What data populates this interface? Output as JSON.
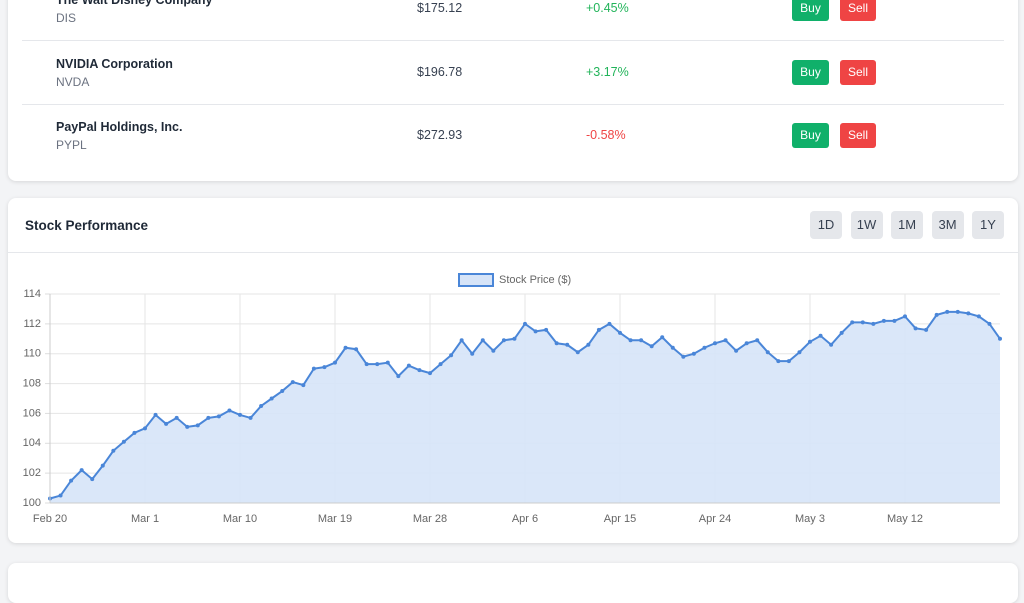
{
  "stocks": {
    "rows": [
      {
        "name": "The Walt Disney Company",
        "symbol": "DIS",
        "price": "$175.12",
        "change": "+0.45%"
      },
      {
        "name": "NVIDIA Corporation",
        "symbol": "NVDA",
        "price": "$196.78",
        "change": "+3.17%"
      },
      {
        "name": "PayPal Holdings, Inc.",
        "symbol": "PYPL",
        "price": "$272.93",
        "change": "-0.58%"
      }
    ],
    "buy": "Buy",
    "sell": "Sell"
  },
  "performance": {
    "title": "Stock Performance",
    "ranges": [
      "1D",
      "1W",
      "1M",
      "3M",
      "1Y"
    ]
  },
  "chart_data": {
    "type": "area",
    "categories": [
      "Feb 20",
      null,
      null,
      null,
      null,
      null,
      null,
      null,
      null,
      "Mar 1",
      null,
      null,
      null,
      null,
      null,
      null,
      null,
      null,
      "Mar 10",
      null,
      null,
      null,
      null,
      null,
      null,
      null,
      null,
      "Mar 19",
      null,
      null,
      null,
      null,
      null,
      null,
      null,
      null,
      "Mar 28",
      null,
      null,
      null,
      null,
      null,
      null,
      null,
      null,
      "Apr 6",
      null,
      null,
      null,
      null,
      null,
      null,
      null,
      null,
      "Apr 15",
      null,
      null,
      null,
      null,
      null,
      null,
      null,
      null,
      "Apr 24",
      null,
      null,
      null,
      null,
      null,
      null,
      null,
      null,
      "May 3",
      null,
      null,
      null,
      null,
      null,
      null,
      null,
      null,
      "May 12",
      null,
      null,
      null,
      null,
      null,
      null,
      null,
      null,
      null
    ],
    "series": [
      {
        "name": "Stock Price ($)",
        "color": "#4a86d8",
        "fill": "#d6e4f8",
        "values": [
          100.3,
          100.5,
          101.5,
          102.2,
          101.6,
          102.5,
          103.5,
          104.1,
          104.7,
          105.0,
          105.9,
          105.3,
          105.7,
          105.1,
          105.2,
          105.7,
          105.8,
          106.2,
          105.9,
          105.7,
          106.5,
          107.0,
          107.5,
          108.1,
          107.9,
          109.0,
          109.1,
          109.4,
          110.4,
          110.3,
          109.3,
          109.3,
          109.4,
          108.5,
          109.2,
          108.9,
          108.7,
          109.3,
          109.9,
          110.9,
          110.0,
          110.9,
          110.2,
          110.9,
          111.0,
          112.0,
          111.5,
          111.6,
          110.7,
          110.6,
          110.1,
          110.6,
          111.6,
          112.0,
          111.4,
          110.9,
          110.9,
          110.5,
          111.1,
          110.4,
          109.8,
          110.0,
          110.4,
          110.7,
          110.9,
          110.2,
          110.7,
          110.9,
          110.1,
          109.5,
          109.5,
          110.1,
          110.8,
          111.2,
          110.6,
          111.4,
          112.1,
          112.1,
          112.0,
          112.2,
          112.2,
          112.5,
          111.7,
          111.6,
          112.6,
          112.8,
          112.8,
          112.7,
          112.5,
          112.0,
          111.0
        ]
      }
    ],
    "ylim": [
      100,
      114
    ],
    "yticks": [
      100,
      102,
      104,
      106,
      108,
      110,
      112,
      114
    ],
    "grid": true,
    "legend": "top"
  }
}
